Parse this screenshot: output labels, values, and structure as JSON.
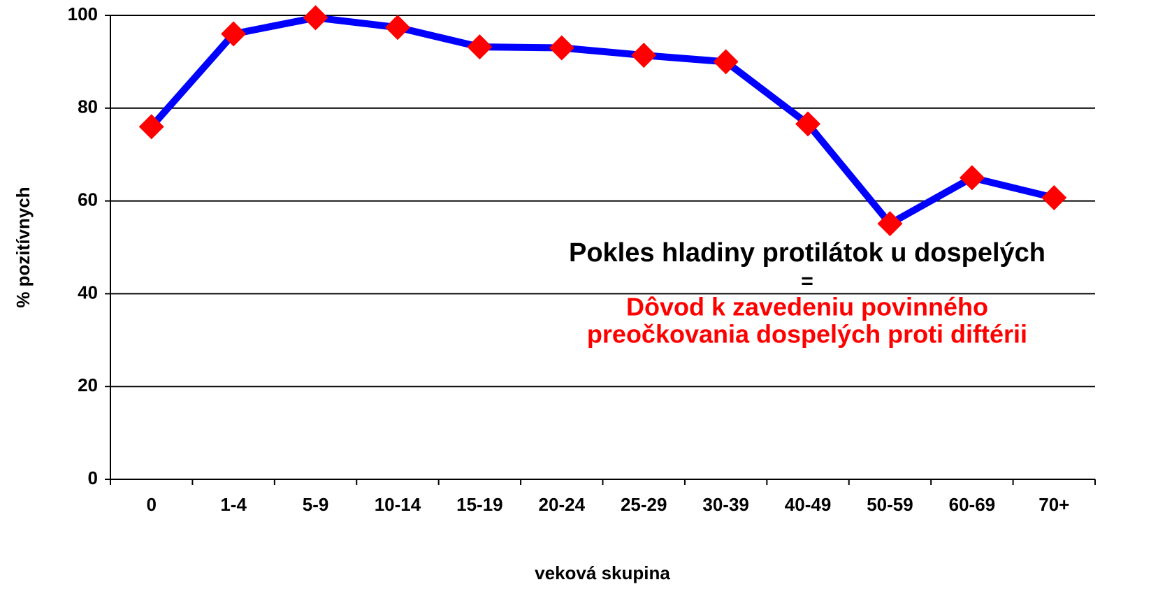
{
  "chart_data": {
    "type": "line",
    "categories": [
      "0",
      "1-4",
      "5-9",
      "10-14",
      "15-19",
      "20-24",
      "25-29",
      "30-39",
      "40-49",
      "50-59",
      "60-69",
      "70+"
    ],
    "series": [
      {
        "color": "#0000ff",
        "marker_color": "#ff0000",
        "values": [
          76,
          96,
          99.5,
          97.4,
          93.2,
          93,
          91.4,
          90,
          76.6,
          55.1,
          65,
          60.7
        ]
      }
    ],
    "ylim": [
      0,
      100
    ],
    "yticks": [
      0,
      20,
      40,
      60,
      80,
      100
    ],
    "grid": true,
    "ylabel": "% pozitívnych",
    "xlabel": "veková skupina",
    "annotations": [
      {
        "text": "Pokles hladiny protilátok u dospelých",
        "color": "#000000"
      },
      {
        "text": "=",
        "color": "#000000"
      },
      {
        "text": "Dôvod k zavedeniu povinného",
        "color": "#ff0000"
      },
      {
        "text": "preočkovania dospelých proti diftérii",
        "color": "#ff0000"
      }
    ]
  }
}
